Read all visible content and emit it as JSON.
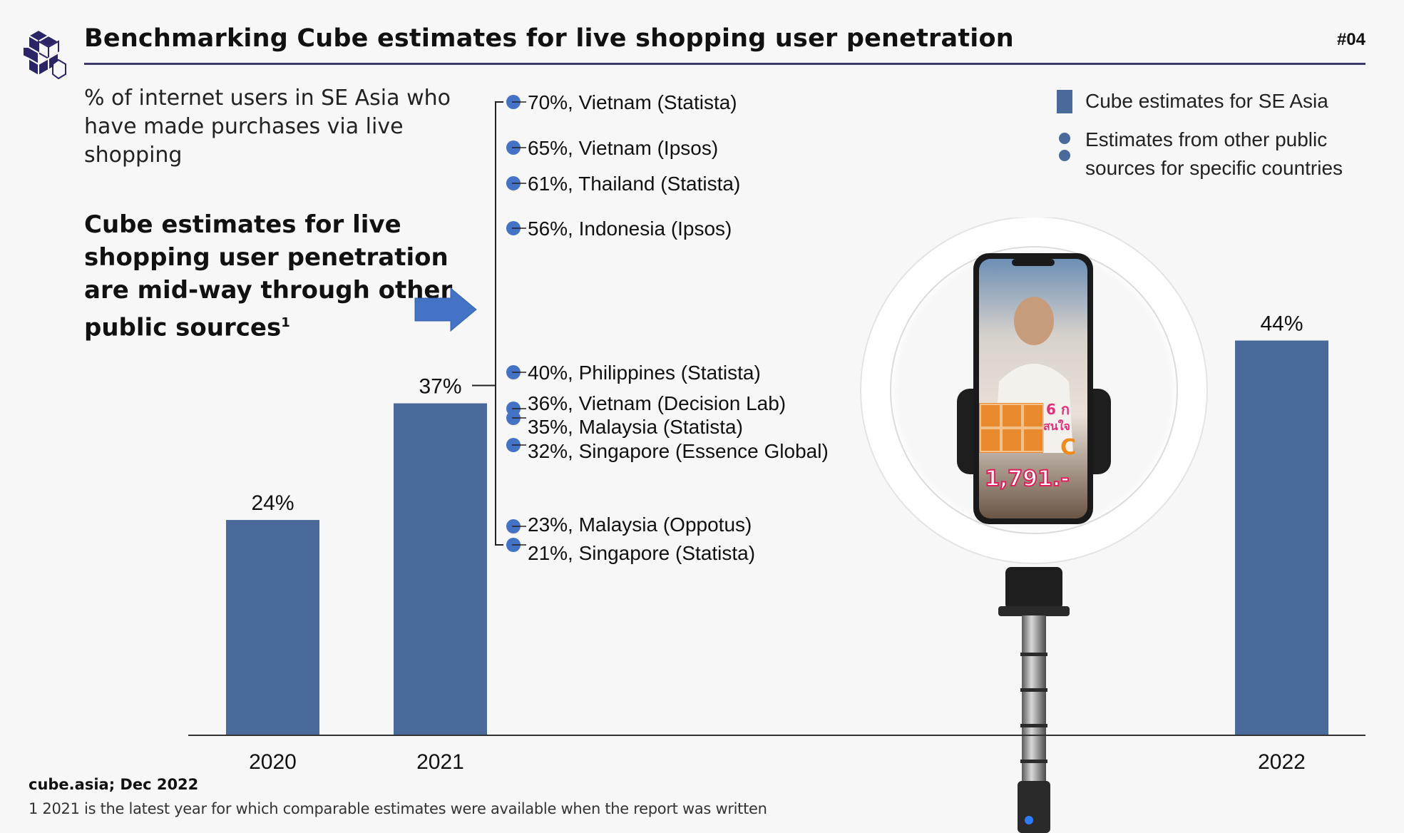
{
  "header": {
    "title": "Benchmarking Cube estimates for live shopping user penetration",
    "page_number": "#04",
    "logo_icon": "cube-logo-icon"
  },
  "subtitle": "% of internet users in SE Asia who have made purchases via live shopping",
  "callout": {
    "text": "Cube estimates for live shopping user penetration are mid-way through other public sources",
    "footnote_marker": "1",
    "arrow_icon": "arrow-right-icon"
  },
  "legend": {
    "bar_label": "Cube estimates for SE Asia",
    "dot_label": "Estimates from other public sources for specific countries"
  },
  "colors": {
    "bar": "#4a6a9b",
    "dot": "#4472c4",
    "arrow": "#4472c4",
    "rule": "#3d3a6b"
  },
  "chart_data": {
    "type": "bar",
    "title": "Benchmarking Cube estimates for live shopping user penetration",
    "ylabel": "% of internet users in SE Asia who have made purchases via live shopping",
    "xlabel": "",
    "categories": [
      "2020",
      "2021",
      "2022"
    ],
    "values": [
      24,
      37,
      44
    ],
    "value_labels": [
      "24%",
      "37%",
      "44%"
    ],
    "ylim": [
      0,
      70
    ],
    "grid": false,
    "legend_position": "top-right",
    "benchmarks_for": "2021",
    "benchmarks": [
      {
        "value": 70,
        "label": "70%, Vietnam (Statista)"
      },
      {
        "value": 65,
        "label": "65%, Vietnam (Ipsos)"
      },
      {
        "value": 61,
        "label": "61%, Thailand (Statista)"
      },
      {
        "value": 56,
        "label": "56%, Indonesia (Ipsos)"
      },
      {
        "value": 40,
        "label": "40%, Philippines (Statista)"
      },
      {
        "value": 36,
        "label": "36%, Vietnam (Decision Lab)"
      },
      {
        "value": 35,
        "label": "35%, Malaysia (Statista)"
      },
      {
        "value": 32,
        "label": "32%, Singapore (Essence Global)"
      },
      {
        "value": 23,
        "label": "23%, Malaysia (Oppotus)"
      },
      {
        "value": 21,
        "label": "21%, Singapore (Statista)"
      }
    ]
  },
  "illustration": {
    "description": "ring light with smartphone showing live shopping stream",
    "screen_price_text": "1,791.-"
  },
  "footer": {
    "source": "cube.asia; Dec 2022",
    "note": "1 2021 is the latest year for which comparable estimates were available when the report was written"
  }
}
